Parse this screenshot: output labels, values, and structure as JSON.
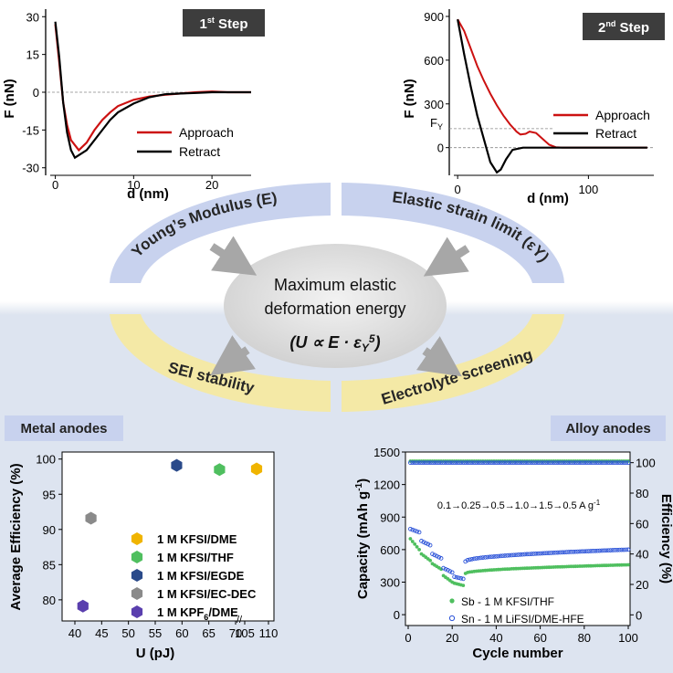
{
  "title_step1": "1",
  "title_step1_sup": "st",
  "title_step1_tail": " Step",
  "title_step2": "2",
  "title_step2_sup": "nd",
  "title_step2_tail": " Step",
  "chart_data": [
    {
      "type": "line",
      "title": "1st Step",
      "xlabel": "d (nm)",
      "ylabel": "F (nN)",
      "xlim": [
        -1,
        25
      ],
      "ylim": [
        -33,
        33
      ],
      "yticks": [
        30,
        15,
        0,
        -15,
        -30
      ],
      "yticklabels": [
        "30",
        "15",
        "0",
        "-15",
        "-30"
      ],
      "xticks": [
        0,
        10,
        20
      ],
      "xticklabels": [
        "0",
        "10",
        "20"
      ],
      "series": [
        {
          "name": "Approach",
          "color": "#cc1111",
          "x": [
            0,
            0.5,
            1,
            1.5,
            2,
            3,
            4,
            5,
            6,
            7,
            8,
            10,
            12,
            14,
            16,
            18,
            20,
            22,
            25
          ],
          "y": [
            27,
            12,
            -4,
            -13,
            -19,
            -23,
            -20,
            -15,
            -11,
            -8,
            -5.5,
            -3,
            -1.7,
            -1,
            -0.5,
            0,
            0.3,
            0,
            0
          ]
        },
        {
          "name": "Retract",
          "color": "#000000",
          "x": [
            0,
            0.5,
            1,
            1.5,
            2,
            2.5,
            3,
            4,
            5,
            6,
            7,
            8,
            10,
            12,
            14,
            16,
            18,
            20,
            22,
            25
          ],
          "y": [
            28,
            14,
            -4,
            -16,
            -23,
            -26,
            -25,
            -23,
            -19,
            -15,
            -11,
            -8,
            -4.5,
            -2,
            -0.8,
            -0.5,
            -0.3,
            0,
            0,
            0
          ]
        }
      ]
    },
    {
      "type": "line",
      "title": "2nd Step",
      "xlabel": "d (nm)",
      "ylabel": "F (nN)",
      "xlim": [
        -5,
        150
      ],
      "ylim": [
        -190,
        950
      ],
      "yticks": [
        900,
        600,
        300,
        0
      ],
      "yticklabels": [
        "900",
        "600",
        "300",
        "0"
      ],
      "xticks": [
        0,
        100
      ],
      "xticklabels": [
        "0",
        "100"
      ],
      "fy_label": "FY",
      "fy_value": 130,
      "series": [
        {
          "name": "Approach",
          "color": "#cc1111",
          "x": [
            0,
            5,
            10,
            15,
            20,
            25,
            30,
            35,
            40,
            45,
            48,
            52,
            55,
            60,
            65,
            70,
            75,
            80,
            90,
            100,
            110,
            120,
            130,
            145
          ],
          "y": [
            880,
            800,
            680,
            560,
            460,
            370,
            290,
            220,
            160,
            110,
            90,
            95,
            110,
            100,
            60,
            20,
            3,
            0,
            0,
            0,
            0,
            0,
            0,
            0
          ]
        },
        {
          "name": "Retract",
          "color": "#000000",
          "x": [
            0,
            5,
            10,
            15,
            20,
            25,
            30,
            33,
            37,
            42,
            50,
            60,
            70,
            80,
            100,
            120,
            145
          ],
          "y": [
            880,
            640,
            420,
            220,
            60,
            -100,
            -170,
            -150,
            -80,
            -15,
            0,
            0,
            0,
            0,
            0,
            0,
            0
          ]
        }
      ]
    },
    {
      "type": "scatter",
      "title": "Metal anodes",
      "xlabel": "U (pJ)",
      "ylabel": "Average Efficiency (%)",
      "ylim": [
        77,
        101
      ],
      "yticks": [
        80,
        85,
        90,
        95,
        100
      ],
      "xtick_labels": [
        "40",
        "45",
        "50",
        "55",
        "60",
        "65",
        "70",
        "105",
        "110"
      ],
      "axis_break_label": "//",
      "points": [
        {
          "name": "1 M KFSI/DME",
          "x": 107.5,
          "y": 98.6,
          "color": "#f0b400"
        },
        {
          "name": "1 M KFSI/THF",
          "x": 67,
          "y": 98.5,
          "color": "#4fbf5f"
        },
        {
          "name": "1 M KFSI/EGDE",
          "x": 59,
          "y": 99.1,
          "color": "#2a4a8a"
        },
        {
          "name": "1 M KFSI/EC-DEC",
          "x": 43,
          "y": 91.6,
          "color": "#8a8a8a"
        },
        {
          "name": "1 M KPF6/DME",
          "x": 41.5,
          "y": 79.1,
          "color": "#5a3fae"
        }
      ]
    },
    {
      "type": "scatter",
      "title": "Alloy anodes",
      "xlabel": "Cycle number",
      "ylabel": "Capacity (mAh g-1)",
      "ylabel_right": "Efficiency (%)",
      "xlim": [
        0,
        100
      ],
      "ylim": [
        -100,
        1500
      ],
      "yticks": [
        0,
        300,
        600,
        900,
        1200,
        1500
      ],
      "right_yticks": [
        0,
        20,
        40,
        60,
        80,
        100
      ],
      "xticks": [
        0,
        20,
        40,
        60,
        80,
        100
      ],
      "rate_annotation": "0.1→0.25→0.5→1.0→1.5→0.5 A g-1",
      "series": [
        {
          "name": "Sb - 1 M KFSI/THF",
          "color": "#4fbf5f",
          "capacity_segments": [
            {
              "from": 1,
              "to": 5,
              "start": 700,
              "end": 600
            },
            {
              "from": 6,
              "to": 10,
              "start": 560,
              "end": 500
            },
            {
              "from": 11,
              "to": 15,
              "start": 470,
              "end": 420
            },
            {
              "from": 16,
              "to": 20,
              "start": 360,
              "end": 300
            },
            {
              "from": 21,
              "to": 25,
              "start": 290,
              "end": 270
            },
            {
              "from": 26,
              "to": 100,
              "start": 380,
              "end": 460
            }
          ],
          "efficiency": 101
        },
        {
          "name": "Sn - 1 M LiFSI/DME-HFE",
          "color": "#2a52d8",
          "capacity_segments": [
            {
              "from": 1,
              "to": 5,
              "start": 790,
              "end": 760
            },
            {
              "from": 6,
              "to": 10,
              "start": 680,
              "end": 640
            },
            {
              "from": 11,
              "to": 15,
              "start": 560,
              "end": 520
            },
            {
              "from": 16,
              "to": 20,
              "start": 430,
              "end": 390
            },
            {
              "from": 21,
              "to": 25,
              "start": 350,
              "end": 330
            },
            {
              "from": 26,
              "to": 100,
              "start": 490,
              "end": 600
            }
          ],
          "efficiency": 100
        }
      ]
    }
  ],
  "ring": {
    "youngs": "Young’s Modulus (E)",
    "strain": "Elastic strain limit (εY)",
    "sei": "SEI stability",
    "electrolyte": "Electrolyte screening"
  },
  "center": {
    "line1": "Maximum elastic",
    "line2": "deformation energy",
    "formula": "(U ∝ E · εY5)"
  },
  "labels": {
    "metal_anodes": "Metal anodes",
    "alloy_anodes": "Alloy anodes",
    "legend_approach": "Approach",
    "legend_retract": "Retract"
  }
}
